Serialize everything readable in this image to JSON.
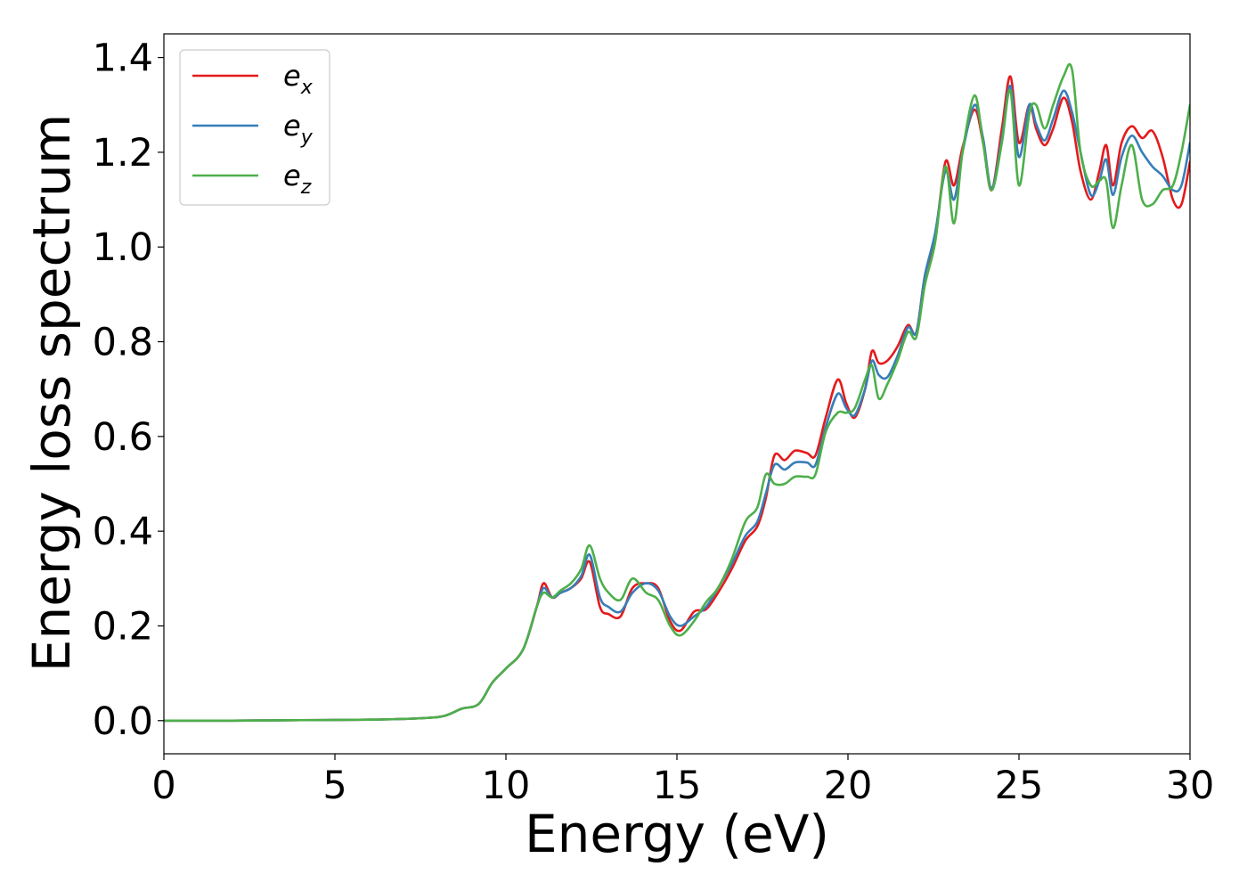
{
  "chart_data": {
    "type": "line",
    "title": "",
    "xlabel": "Energy (eV)",
    "ylabel": "Energy loss spectrum",
    "xlim": [
      0,
      30
    ],
    "ylim": [
      -0.07,
      1.45
    ],
    "xticks": [
      0,
      5,
      10,
      15,
      20,
      25,
      30
    ],
    "xtick_labels": [
      "0",
      "5",
      "10",
      "15",
      "20",
      "25",
      "30"
    ],
    "yticks": [
      0.0,
      0.2,
      0.4,
      0.6,
      0.8,
      1.0,
      1.2,
      1.4
    ],
    "ytick_labels": [
      "0.0",
      "0.2",
      "0.4",
      "0.6",
      "0.8",
      "1.0",
      "1.2",
      "1.4"
    ],
    "grid": false,
    "legend_position": "top-left",
    "series": [
      {
        "name": "e_x",
        "legend_base": "e",
        "legend_sub": "x",
        "color": "#e41a1c",
        "x": [
          0,
          2,
          4,
          6,
          7.5,
          8.2,
          8.7,
          9.2,
          9.6,
          10.0,
          10.5,
          10.9,
          11.1,
          11.35,
          11.6,
          11.9,
          12.2,
          12.45,
          12.75,
          13.0,
          13.35,
          13.7,
          14.1,
          14.45,
          14.8,
          15.1,
          15.5,
          15.85,
          16.2,
          16.6,
          17.0,
          17.35,
          17.6,
          17.85,
          18.15,
          18.45,
          18.8,
          19.05,
          19.35,
          19.7,
          19.95,
          20.2,
          20.5,
          20.7,
          20.9,
          21.15,
          21.45,
          21.75,
          22.0,
          22.25,
          22.55,
          22.85,
          23.1,
          23.35,
          23.7,
          23.95,
          24.2,
          24.5,
          24.75,
          25.0,
          25.3,
          25.5,
          25.75,
          26.0,
          26.3,
          26.55,
          26.8,
          27.1,
          27.35,
          27.55,
          27.75,
          28.0,
          28.3,
          28.6,
          28.9,
          29.2,
          29.5,
          29.75,
          30.0
        ],
        "y": [
          0.0,
          0.0,
          0.001,
          0.002,
          0.005,
          0.01,
          0.025,
          0.035,
          0.08,
          0.11,
          0.15,
          0.24,
          0.29,
          0.26,
          0.27,
          0.28,
          0.3,
          0.335,
          0.24,
          0.225,
          0.22,
          0.28,
          0.29,
          0.28,
          0.21,
          0.19,
          0.23,
          0.235,
          0.27,
          0.32,
          0.38,
          0.41,
          0.47,
          0.56,
          0.55,
          0.57,
          0.565,
          0.56,
          0.64,
          0.72,
          0.67,
          0.64,
          0.7,
          0.78,
          0.755,
          0.76,
          0.79,
          0.835,
          0.82,
          0.94,
          1.02,
          1.18,
          1.13,
          1.21,
          1.29,
          1.22,
          1.12,
          1.25,
          1.36,
          1.22,
          1.3,
          1.25,
          1.215,
          1.25,
          1.315,
          1.265,
          1.16,
          1.1,
          1.16,
          1.215,
          1.13,
          1.22,
          1.255,
          1.23,
          1.245,
          1.19,
          1.1,
          1.09,
          1.18
        ]
      },
      {
        "name": "e_y",
        "legend_base": "e",
        "legend_sub": "y",
        "color": "#377eb8",
        "x": [
          0,
          2,
          4,
          6,
          7.5,
          8.2,
          8.7,
          9.2,
          9.6,
          10.0,
          10.5,
          10.9,
          11.1,
          11.35,
          11.6,
          11.9,
          12.2,
          12.45,
          12.75,
          13.0,
          13.35,
          13.7,
          14.1,
          14.45,
          14.8,
          15.1,
          15.5,
          15.85,
          16.2,
          16.6,
          17.0,
          17.35,
          17.6,
          17.85,
          18.15,
          18.45,
          18.8,
          19.05,
          19.35,
          19.7,
          19.95,
          20.2,
          20.5,
          20.7,
          20.9,
          21.15,
          21.45,
          21.75,
          22.0,
          22.25,
          22.55,
          22.85,
          23.1,
          23.35,
          23.7,
          23.95,
          24.2,
          24.5,
          24.75,
          25.0,
          25.3,
          25.5,
          25.75,
          26.0,
          26.3,
          26.55,
          26.8,
          27.1,
          27.35,
          27.55,
          27.75,
          28.0,
          28.3,
          28.6,
          28.9,
          29.2,
          29.5,
          29.75,
          30.0
        ],
        "y": [
          0.0,
          0.0,
          0.001,
          0.002,
          0.005,
          0.01,
          0.025,
          0.035,
          0.08,
          0.11,
          0.15,
          0.24,
          0.28,
          0.26,
          0.27,
          0.28,
          0.305,
          0.35,
          0.26,
          0.24,
          0.23,
          0.27,
          0.29,
          0.275,
          0.22,
          0.2,
          0.22,
          0.24,
          0.28,
          0.33,
          0.39,
          0.42,
          0.48,
          0.54,
          0.53,
          0.545,
          0.545,
          0.54,
          0.62,
          0.69,
          0.66,
          0.645,
          0.7,
          0.76,
          0.73,
          0.725,
          0.77,
          0.83,
          0.82,
          0.94,
          1.03,
          1.16,
          1.1,
          1.2,
          1.3,
          1.23,
          1.125,
          1.23,
          1.34,
          1.19,
          1.3,
          1.26,
          1.225,
          1.27,
          1.33,
          1.285,
          1.2,
          1.11,
          1.14,
          1.185,
          1.11,
          1.19,
          1.235,
          1.2,
          1.17,
          1.15,
          1.12,
          1.13,
          1.22
        ]
      },
      {
        "name": "e_z",
        "legend_base": "e",
        "legend_sub": "z",
        "color": "#4daf4a",
        "x": [
          0,
          2,
          4,
          6,
          7.5,
          8.2,
          8.7,
          9.2,
          9.6,
          10.0,
          10.5,
          10.9,
          11.1,
          11.35,
          11.6,
          11.9,
          12.2,
          12.45,
          12.75,
          13.0,
          13.35,
          13.7,
          14.1,
          14.45,
          14.8,
          15.1,
          15.5,
          15.85,
          16.2,
          16.6,
          17.0,
          17.35,
          17.6,
          17.85,
          18.15,
          18.45,
          18.8,
          19.05,
          19.35,
          19.7,
          19.95,
          20.2,
          20.5,
          20.7,
          20.9,
          21.15,
          21.45,
          21.75,
          22.0,
          22.25,
          22.55,
          22.85,
          23.1,
          23.35,
          23.7,
          23.95,
          24.2,
          24.5,
          24.75,
          25.0,
          25.3,
          25.5,
          25.75,
          26.0,
          26.3,
          26.55,
          26.8,
          27.1,
          27.35,
          27.55,
          27.75,
          28.0,
          28.3,
          28.6,
          28.9,
          29.2,
          29.5,
          29.75,
          30.0
        ],
        "y": [
          0.0,
          0.0,
          0.001,
          0.002,
          0.005,
          0.01,
          0.025,
          0.035,
          0.08,
          0.11,
          0.15,
          0.24,
          0.27,
          0.26,
          0.275,
          0.29,
          0.32,
          0.37,
          0.3,
          0.27,
          0.255,
          0.3,
          0.27,
          0.255,
          0.2,
          0.18,
          0.21,
          0.25,
          0.28,
          0.34,
          0.42,
          0.45,
          0.52,
          0.5,
          0.5,
          0.515,
          0.515,
          0.52,
          0.61,
          0.65,
          0.65,
          0.66,
          0.72,
          0.75,
          0.68,
          0.71,
          0.76,
          0.82,
          0.81,
          0.92,
          1.01,
          1.17,
          1.05,
          1.2,
          1.32,
          1.22,
          1.12,
          1.22,
          1.33,
          1.13,
          1.28,
          1.3,
          1.25,
          1.3,
          1.36,
          1.375,
          1.2,
          1.13,
          1.14,
          1.14,
          1.04,
          1.13,
          1.215,
          1.1,
          1.09,
          1.12,
          1.13,
          1.2,
          1.3
        ]
      }
    ]
  }
}
